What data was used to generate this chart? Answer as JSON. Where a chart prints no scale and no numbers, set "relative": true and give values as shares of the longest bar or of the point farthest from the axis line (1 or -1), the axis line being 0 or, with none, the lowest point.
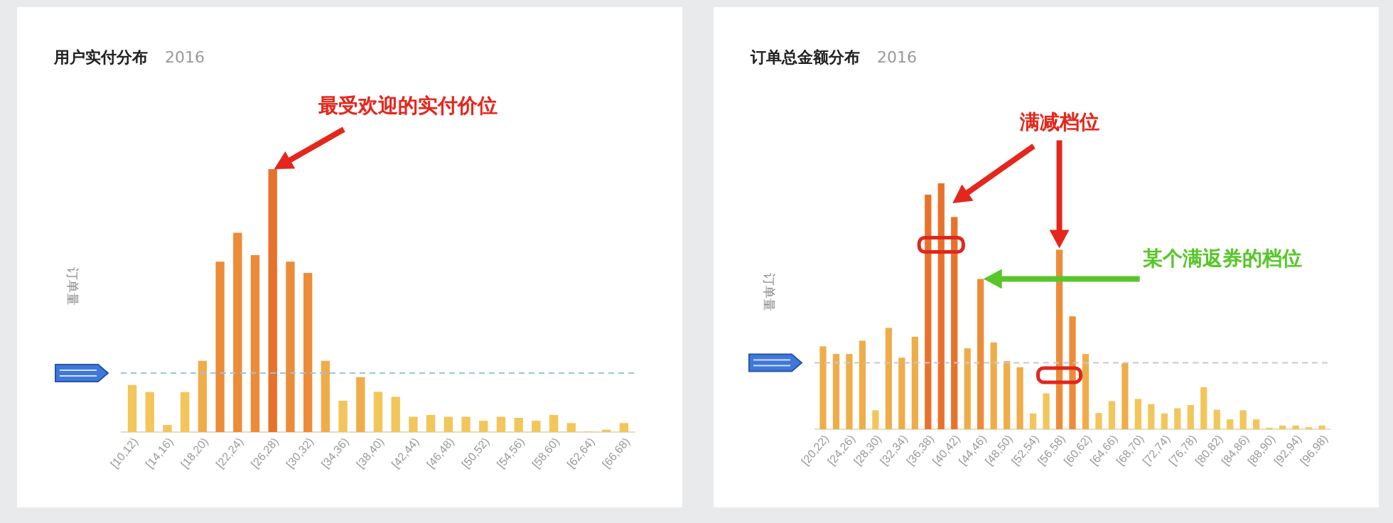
{
  "chart_data": [
    {
      "type": "bar",
      "title": "用户实付分布",
      "subtitle": "2016",
      "ylabel": "订单量",
      "relative": true,
      "categories": [
        "[10,12)",
        null,
        "[14,16)",
        null,
        "[18,20)",
        null,
        "[22,24)",
        null,
        "[26,28)",
        null,
        "[30,32)",
        null,
        "[34,36)",
        null,
        "[38,40)",
        null,
        "[42,44)",
        null,
        "[46,48)",
        null,
        "[50,52)",
        null,
        "[54,56)",
        null,
        "[58,60)",
        null,
        "[62,64)",
        null,
        "[66,68)"
      ],
      "values": [
        0.179,
        0.152,
        0.027,
        0.152,
        0.271,
        0.648,
        0.758,
        0.673,
        1,
        0.648,
        0.605,
        0.271,
        0.119,
        0.209,
        0.153,
        0.134,
        0.058,
        0.065,
        0.058,
        0.058,
        0.043,
        0.058,
        0.054,
        0.043,
        0.065,
        0.034,
        0.002,
        0.009,
        0.034
      ],
      "colors": [
        "#f2c65a",
        "#f2c65a",
        "#f2c65a",
        "#f2c65a",
        "#efad4a",
        "#ec8c38",
        "#ec8c38",
        "#ec8c38",
        "#e8722c",
        "#ec8c38",
        "#ec8c38",
        "#efad4a",
        "#f2c65a",
        "#efad4a",
        "#f2c65a",
        "#f2c65a",
        "#f2c65a",
        "#f2c65a",
        "#f2c65a",
        "#f2c65a",
        "#f2c65a",
        "#f2c65a",
        "#f2c65a",
        "#f2c65a",
        "#f2c65a",
        "#f2c65a",
        "#f2c65a",
        "#f2c65a",
        "#f2c65a"
      ],
      "ref_lines": [
        {
          "axis": "y",
          "value": 0.224,
          "color": "#9cc3dd",
          "line_style": "dashed"
        }
      ],
      "annotations": [
        "最受欢迎的实付价位"
      ]
    },
    {
      "type": "bar",
      "title": "订单总金额分布",
      "subtitle": "2016",
      "ylabel": "订单量",
      "relative": true,
      "categories": [
        "[20,22)",
        null,
        "[24,26)",
        null,
        "[28,30)",
        null,
        "[32,34)",
        null,
        "[36,38)",
        null,
        "[40,42)",
        null,
        "[44,46)",
        null,
        "[48,50)",
        null,
        "[52,54)",
        null,
        "[56,58)",
        null,
        "[60,62)",
        null,
        "[64,66)",
        null,
        "[68,70)",
        null,
        "[72,74)",
        null,
        "[76,78)",
        null,
        "[80,82)",
        null,
        "[84,86)",
        null,
        "[88,90)",
        null,
        "[92,94)",
        null,
        "[96,98)"
      ],
      "values": [
        0.337,
        0.306,
        0.306,
        0.36,
        0.077,
        0.412,
        0.291,
        0.376,
        0.954,
        1,
        0.863,
        0.329,
        0.611,
        0.353,
        0.277,
        0.252,
        0.064,
        0.146,
        0.73,
        0.459,
        0.306,
        0.066,
        0.114,
        0.268,
        0.123,
        0.102,
        0.064,
        0.085,
        0.098,
        0.171,
        0.079,
        0.04,
        0.077,
        0.04,
        0.006,
        0.015,
        0.015,
        0.008,
        0.015
      ],
      "colors": [
        "#efad4a",
        "#efad4a",
        "#efad4a",
        "#efad4a",
        "#f2c65a",
        "#efad4a",
        "#efad4a",
        "#efad4a",
        "#e8722c",
        "#e8722c",
        "#e8722c",
        "#efad4a",
        "#ec8c38",
        "#efad4a",
        "#efad4a",
        "#efad4a",
        "#f2c65a",
        "#f2c65a",
        "#ec8c38",
        "#ec8c38",
        "#efad4a",
        "#f2c65a",
        "#f2c65a",
        "#efad4a",
        "#f2c65a",
        "#f2c65a",
        "#f2c65a",
        "#f2c65a",
        "#f2c65a",
        "#f2c65a",
        "#f2c65a",
        "#f2c65a",
        "#f2c65a",
        "#f2c65a",
        "#f2c65a",
        "#f2c65a",
        "#f2c65a",
        "#f2c65a",
        "#f2c65a"
      ],
      "ref_lines": [
        {
          "axis": "y",
          "value": 0.27,
          "color": "#c8c8c8",
          "line_style": "dashed"
        }
      ],
      "annotations": [
        "满减档位",
        "某个满返券的档位"
      ]
    }
  ]
}
